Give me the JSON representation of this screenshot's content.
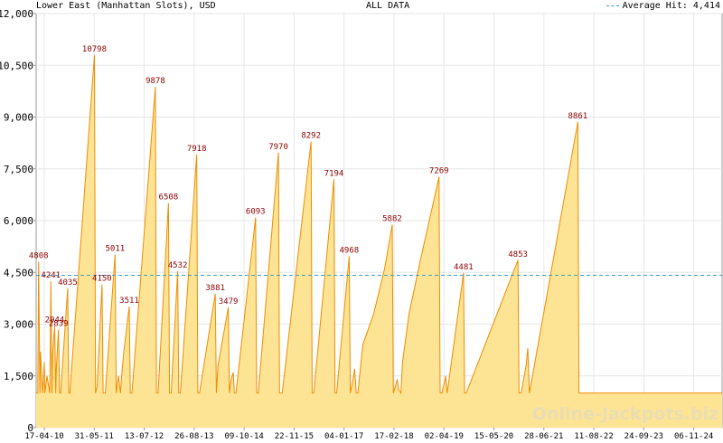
{
  "header": {
    "left": "Lower East (Manhattan Slots), USD",
    "center": "ALL DATA",
    "legend_label": "Average Hit: 4,414"
  },
  "watermark": "Online-Jackpots.biz",
  "colors": {
    "fill": "#fde495",
    "line": "#f08c00",
    "average": "#3a9fc4",
    "peak_label": "#8b0000",
    "grid": "#e6e6e6",
    "axis": "#999999"
  },
  "chart_data": {
    "type": "area",
    "title": "Lower East (Manhattan Slots), USD",
    "subtitle": "ALL DATA",
    "ylim": [
      0,
      12000
    ],
    "y_ticks": [
      0,
      1500,
      3000,
      4500,
      6000,
      7500,
      9000,
      10500,
      12000
    ],
    "y_tick_labels": [
      "0",
      "1,500",
      "3,000",
      "4,500",
      "6,000",
      "7,500",
      "9,000",
      "10,500",
      "12,000"
    ],
    "x_tick_labels": [
      "17-04-10",
      "31-05-11",
      "13-07-12",
      "26-08-13",
      "09-10-14",
      "22-11-15",
      "04-01-17",
      "17-02-18",
      "02-04-19",
      "15-05-20",
      "28-06-21",
      "11-08-22",
      "24-09-23",
      "06-11-24"
    ],
    "average": 4414,
    "grid": true,
    "legend_position": "top-right",
    "peaks": [
      {
        "index": 0.45,
        "value": 4808
      },
      {
        "index": 2.7,
        "value": 4241
      },
      {
        "index": 3.4,
        "value": 2944
      },
      {
        "index": 4.1,
        "value": 2839
      },
      {
        "index": 5.8,
        "value": 4035
      },
      {
        "index": 10.7,
        "value": 10798
      },
      {
        "index": 12.1,
        "value": 4150
      },
      {
        "index": 14.5,
        "value": 5011
      },
      {
        "index": 17.1,
        "value": 3511
      },
      {
        "index": 21.9,
        "value": 9878
      },
      {
        "index": 24.3,
        "value": 6508
      },
      {
        "index": 26.0,
        "value": 4532
      },
      {
        "index": 29.5,
        "value": 7918
      },
      {
        "index": 32.9,
        "value": 3881
      },
      {
        "index": 35.3,
        "value": 3479
      },
      {
        "index": 40.3,
        "value": 6093
      },
      {
        "index": 44.5,
        "value": 7970
      },
      {
        "index": 50.5,
        "value": 8292
      },
      {
        "index": 54.7,
        "value": 7194
      },
      {
        "index": 57.5,
        "value": 4968
      },
      {
        "index": 65.4,
        "value": 5882
      },
      {
        "index": 74.0,
        "value": 7269
      },
      {
        "index": 78.5,
        "value": 4481
      },
      {
        "index": 88.5,
        "value": 4853
      },
      {
        "index": 99.5,
        "value": 8861
      }
    ],
    "series": [
      {
        "x": [
          0,
          0.3,
          0.45,
          0.7,
          0.8,
          1.2,
          1.5,
          1.6,
          2.0,
          2.5,
          2.7,
          2.9,
          3.0,
          3.4,
          3.6,
          3.7,
          4.1,
          4.3,
          4.5,
          5.8,
          6.0,
          6.2,
          10.7,
          10.9,
          11.2,
          12.1,
          12.3,
          12.7,
          14.5,
          14.7,
          15.1,
          15.5,
          15.7,
          16.1,
          17.1,
          17.3,
          17.6,
          21.9,
          22.1,
          22.4,
          24.3,
          24.5,
          24.8,
          26.0,
          26.2,
          26.5,
          29.5,
          29.7,
          30.0,
          32.9,
          33.1,
          33.4,
          35.3,
          35.5,
          35.8,
          36.2,
          36.4,
          36.7,
          40.3,
          40.5,
          40.8,
          44.5,
          44.7,
          45.2,
          50.5,
          50.7,
          51.0,
          54.7,
          54.9,
          55.2,
          57.5,
          57.7,
          58.2,
          58.5,
          58.8,
          59.1,
          60.0,
          62.0,
          64.0,
          65.0,
          65.4,
          65.6,
          66.0,
          66.3,
          66.6,
          67.0,
          67.3,
          68.5,
          70.5,
          72.5,
          74.0,
          74.2,
          74.5,
          75.0,
          75.2,
          75.5,
          78.5,
          78.7,
          79.0,
          88.5,
          88.7,
          89.1,
          90.0,
          90.3,
          90.6,
          99.5,
          99.7,
          110.0,
          110.3,
          126.0
        ]
      }
    ]
  }
}
